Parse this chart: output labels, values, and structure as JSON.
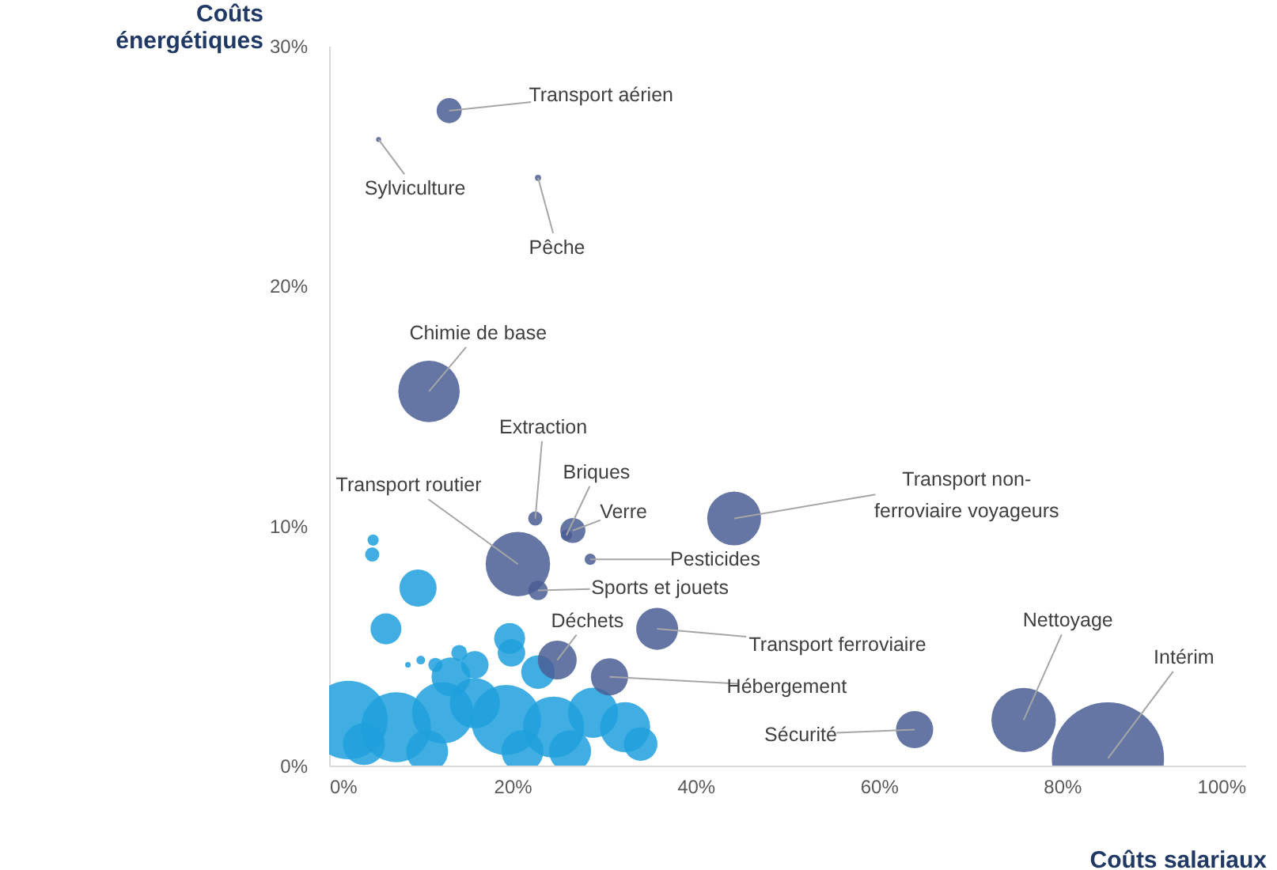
{
  "chart_data": {
    "type": "bubble",
    "xlabel": "Coûts salariaux",
    "ylabel": "Coûts\nénergétiques",
    "xlim": [
      0,
      100
    ],
    "xticks": [
      {
        "value": 0,
        "label": "0%"
      },
      {
        "value": 20,
        "label": "20%"
      },
      {
        "value": 40,
        "label": "40%"
      },
      {
        "value": 60,
        "label": "60%"
      },
      {
        "value": 80,
        "label": "80%"
      },
      {
        "value": 100,
        "label": "100%"
      }
    ],
    "ylim": [
      0,
      30
    ],
    "yticks": [
      {
        "value": 0,
        "label": "0%"
      },
      {
        "value": 10,
        "label": "10%"
      },
      {
        "value": 20,
        "label": "20%"
      },
      {
        "value": 30,
        "label": "30%"
      }
    ],
    "grid": false,
    "series": [
      {
        "color": "#1ea0dd",
        "x": [
          4.8,
          4.7,
          9.7,
          6.2,
          10,
          8.6,
          19.7,
          19.9,
          2.1,
          7.3,
          12.4,
          15.9,
          19.3,
          24.5,
          28.8,
          32.3,
          34,
          13.3,
          15.9,
          22.8,
          3.8,
          10.7,
          21.1,
          26.3,
          14.2,
          11.6
        ],
        "values": [
          9.4,
          8.8,
          7.4,
          5.7,
          4.4,
          4.2,
          5.3,
          4.7,
          1.9,
          1.6,
          2.2,
          2.6,
          1.9,
          1.6,
          2.2,
          1.6,
          0.9,
          3.7,
          4.2,
          3.9,
          0.9,
          0.6,
          0.6,
          0.6,
          4.7,
          4.2
        ],
        "sizes": [
          0.01,
          0.016,
          0.11,
          0.076,
          0.006,
          0.0025,
          0.076,
          0.06,
          0.49,
          0.39,
          0.3,
          0.2,
          0.39,
          0.3,
          0.2,
          0.2,
          0.09,
          0.12,
          0.06,
          0.09,
          0.14,
          0.14,
          0.14,
          0.14,
          0.02,
          0.016
        ]
      },
      {
        "color": "#4a5e94",
        "x": [
          13.1,
          5.4,
          22.8,
          10.9,
          22.5,
          26.6,
          25.9,
          28.5,
          20.6,
          22.8,
          44.2,
          35.8,
          24.9,
          30.6,
          63.9,
          75.8,
          85
        ],
        "values": [
          27.3,
          26.1,
          24.5,
          15.6,
          10.3,
          9.8,
          9.6,
          8.6,
          8.4,
          7.3,
          10.3,
          5.7,
          4.4,
          3.7,
          1.5,
          1.9,
          0.3
        ],
        "sizes": [
          0.05,
          0.002,
          0.003,
          0.3,
          0.016,
          0.05,
          0.01,
          0.01,
          0.33,
          0.03,
          0.23,
          0.14,
          0.12,
          0.11,
          0.11,
          0.33,
          1.0
        ]
      }
    ],
    "annotations": [
      {
        "text": "Transport aérien",
        "x": 13.1,
        "y": 27.3
      },
      {
        "text": "Sylviculture",
        "x": 5.4,
        "y": 26.1
      },
      {
        "text": "Pêche",
        "x": 22.8,
        "y": 24.5
      },
      {
        "text": "Chimie de base",
        "x": 10.9,
        "y": 15.6
      },
      {
        "text": "Extraction",
        "x": 22.5,
        "y": 10.3
      },
      {
        "text": "Briques",
        "x": 25.9,
        "y": 9.6
      },
      {
        "text": "Verre",
        "x": 26.6,
        "y": 9.8
      },
      {
        "text": "Pesticides",
        "x": 28.5,
        "y": 8.6
      },
      {
        "text": "Transport routier",
        "x": 20.6,
        "y": 8.4
      },
      {
        "text": "Sports et jouets",
        "x": 22.8,
        "y": 7.3
      },
      {
        "text": "Transport non-\nferroviaire voyageurs",
        "x": 44.2,
        "y": 10.3
      },
      {
        "text": "Transport ferroviaire",
        "x": 35.8,
        "y": 5.7
      },
      {
        "text": "Déchets",
        "x": 24.9,
        "y": 4.4
      },
      {
        "text": "Hébergement",
        "x": 30.6,
        "y": 3.7
      },
      {
        "text": "Sécurité",
        "x": 63.9,
        "y": 1.5
      },
      {
        "text": "Nettoyage",
        "x": 75.8,
        "y": 1.9
      },
      {
        "text": "Intérim",
        "x": 85,
        "y": 0.3
      }
    ]
  }
}
